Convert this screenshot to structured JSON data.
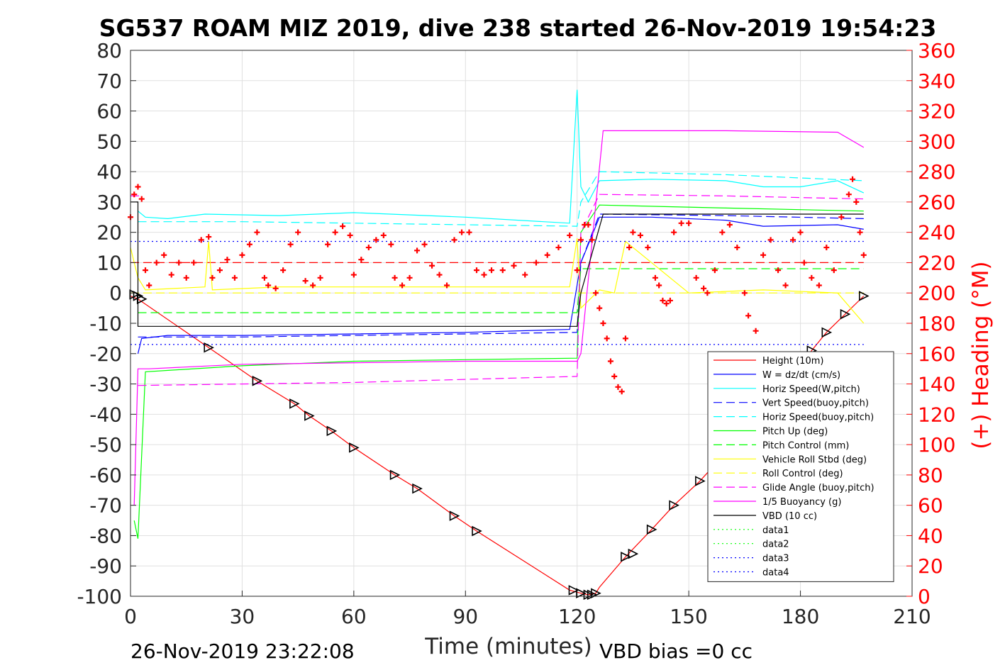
{
  "title": "SG537 ROAM MIZ 2019, dive 238 started 26-Nov-2019 19:54:23",
  "footer_left": "26-Nov-2019 23:22:08",
  "footer_right": "VBD bias =0 cc",
  "chart_data": {
    "type": "line",
    "title": "SG537 ROAM MIZ 2019, dive 238 started 26-Nov-2019 19:54:23",
    "xlabel": "Time (minutes)",
    "ylabel_left": "",
    "ylabel_right": "(+) Heading (°M)",
    "xlim": [
      0,
      210
    ],
    "ylim_left": [
      -100,
      80
    ],
    "ylim_right": [
      0,
      360
    ],
    "x_ticks": [
      "0",
      "30",
      "60",
      "90",
      "120",
      "150",
      "180",
      "210"
    ],
    "y_ticks_left": [
      "80",
      "70",
      "60",
      "50",
      "40",
      "30",
      "20",
      "10",
      "0",
      "-10",
      "-20",
      "-30",
      "-40",
      "-50",
      "-60",
      "-70",
      "-80",
      "-90",
      "-100"
    ],
    "y_ticks_right": [
      "360",
      "340",
      "320",
      "300",
      "280",
      "260",
      "240",
      "220",
      "200",
      "180",
      "160",
      "140",
      "120",
      "100",
      "80",
      "60",
      "40",
      "20",
      "0"
    ],
    "grid": true,
    "legend_position": "bottom-right",
    "series": [
      {
        "name": "Height (10m)",
        "color": "#ff0000",
        "style": "solid",
        "x": [
          0,
          2,
          21,
          34,
          44,
          48,
          54,
          60,
          71,
          77,
          87,
          93,
          118,
          121,
          123,
          125,
          126,
          133,
          140,
          146,
          153,
          170,
          183,
          187,
          192,
          197
        ],
        "y": [
          -1,
          -2,
          -18,
          -29,
          -36.5,
          -40.5,
          -45.5,
          -51,
          -60,
          -64.5,
          -73.5,
          -78.5,
          -98,
          -99,
          -99.5,
          -99,
          -97,
          -87,
          -78,
          -70,
          -62,
          -39,
          -19,
          -13,
          -7,
          -1
        ]
      },
      {
        "name": "W = dz/dt (cm/s)",
        "color": "#0000ff",
        "style": "solid",
        "x": [
          2,
          3,
          10,
          30,
          60,
          90,
          118,
          121,
          126,
          140,
          160,
          170,
          190,
          197
        ],
        "y": [
          -20,
          -15,
          -14,
          -14,
          -13.5,
          -13,
          -12,
          10,
          25,
          25,
          24,
          22,
          22.5,
          21
        ]
      },
      {
        "name": "Horiz Speed(W,pitch)",
        "color": "#00ffff",
        "style": "solid",
        "x": [
          2,
          4,
          10,
          20,
          40,
          60,
          90,
          118,
          120,
          121,
          123,
          126,
          140,
          160,
          170,
          180,
          190,
          197
        ],
        "y": [
          27,
          25,
          24.5,
          26,
          25.5,
          26.5,
          25,
          23,
          67,
          35,
          30,
          37,
          37.5,
          37,
          35,
          35,
          37,
          33
        ]
      },
      {
        "name": "Vert Speed(buoy,pitch)",
        "color": "#0000ff",
        "style": "dashed",
        "x": [
          2,
          30,
          60,
          90,
          120,
          121,
          126,
          160,
          197
        ],
        "y": [
          -14.5,
          -14.5,
          -14,
          -13.5,
          -13,
          10,
          26,
          25.5,
          24.5
        ]
      },
      {
        "name": "Horiz Speed(buoy,pitch)",
        "color": "#00ffff",
        "style": "dashed",
        "x": [
          2,
          30,
          60,
          90,
          120,
          121,
          126,
          160,
          197
        ],
        "y": [
          23.5,
          23.5,
          23,
          22.5,
          22,
          30,
          40,
          39,
          37
        ]
      },
      {
        "name": "Pitch Up (deg)",
        "color": "#00ff00",
        "style": "solid",
        "x": [
          1,
          2,
          4,
          30,
          60,
          90,
          120,
          121,
          126,
          160,
          197
        ],
        "y": [
          -75,
          -81,
          -26,
          -24,
          -22.5,
          -22,
          -21.5,
          20,
          29,
          28,
          27
        ]
      },
      {
        "name": "Pitch Control (mm)",
        "color": "#00ff00",
        "style": "dashed",
        "x": [
          2,
          120,
          121,
          197
        ],
        "y": [
          -6.5,
          -6.5,
          8,
          8
        ]
      },
      {
        "name": "Vehicle Roll Stbd (deg)",
        "color": "#ffff00",
        "style": "solid",
        "x": [
          0,
          2,
          4,
          20,
          21,
          22,
          40,
          60,
          90,
          118,
          120,
          121,
          126,
          130,
          133,
          150,
          170,
          190,
          197
        ],
        "y": [
          15,
          5,
          1,
          2,
          17,
          1,
          2,
          2,
          2,
          2,
          18,
          -5,
          1,
          0,
          17,
          0,
          1,
          0,
          -10
        ]
      },
      {
        "name": "Roll Control (deg)",
        "color": "#ffff00",
        "style": "dashed",
        "x": [
          0,
          197
        ],
        "y": [
          0,
          0
        ]
      },
      {
        "name": "Glide Angle (buoy,pitch)",
        "color": "#ff00ff",
        "style": "dashed",
        "x": [
          2,
          30,
          60,
          90,
          120,
          121,
          126,
          160,
          197
        ],
        "y": [
          -30.5,
          -30,
          -29.5,
          -28.5,
          -27.5,
          20,
          32.5,
          32,
          31
        ]
      },
      {
        "name": "1/5 Buoyancy (g)",
        "color": "#ff00ff",
        "style": "solid",
        "x": [
          1,
          2,
          5,
          30,
          60,
          90,
          120,
          121,
          127,
          160,
          190,
          197
        ],
        "y": [
          -70,
          -25,
          -25,
          -23.5,
          -23,
          -22.5,
          -22.5,
          -20,
          53.5,
          53.5,
          53,
          48
        ]
      },
      {
        "name": "VBD (10 cc)",
        "color": "#000000",
        "style": "solid",
        "x": [
          0,
          2,
          2,
          120,
          121,
          127,
          197
        ],
        "y": [
          30,
          30,
          -11,
          -11,
          0,
          26,
          26
        ]
      },
      {
        "name": "data1",
        "color": "#00ff00",
        "style": "dotted",
        "x": [],
        "y": []
      },
      {
        "name": "data2",
        "color": "#00ff00",
        "style": "dotted",
        "x": [],
        "y": []
      },
      {
        "name": "data3",
        "color": "#0000ff",
        "style": "dotted",
        "x": [
          0,
          197
        ],
        "y": [
          -17,
          -17
        ]
      },
      {
        "name": "data4",
        "color": "#0000ff",
        "style": "dotted",
        "x": [
          0,
          197
        ],
        "y": [
          17,
          17
        ]
      }
    ],
    "aux_lines": [
      {
        "color": "#ff0000",
        "style": "dashed",
        "x": [
          0,
          197
        ],
        "y": [
          10,
          10
        ]
      },
      {
        "color": "#ff00ff",
        "style": "dashed",
        "x": [
          0,
          3
        ],
        "y": [
          32,
          32
        ]
      }
    ],
    "heading_series": {
      "axis": "right",
      "color": "#ff0000",
      "marker": "+",
      "x": [
        0,
        1,
        2,
        3,
        4,
        5,
        7,
        9,
        11,
        13,
        15,
        17,
        19,
        21,
        22,
        24,
        26,
        28,
        30,
        32,
        34,
        36,
        37,
        39,
        41,
        43,
        45,
        47,
        49,
        51,
        53,
        55,
        57,
        59,
        60,
        62,
        64,
        66,
        68,
        70,
        71,
        73,
        75,
        77,
        79,
        81,
        83,
        85,
        87,
        89,
        91,
        93,
        95,
        97,
        100,
        103,
        106,
        109,
        112,
        115,
        118,
        120,
        121,
        122,
        123,
        124,
        125,
        126,
        127,
        128,
        129,
        130,
        131,
        132,
        133,
        134,
        135,
        137,
        139,
        141,
        142,
        143,
        144,
        145,
        146,
        148,
        150,
        152,
        154,
        155,
        157,
        159,
        161,
        163,
        165,
        166,
        168,
        170,
        172,
        174,
        176,
        178,
        180,
        181,
        183,
        185,
        187,
        189,
        191,
        193,
        194,
        195,
        196,
        197
      ],
      "y": [
        250,
        265,
        270,
        262,
        215,
        205,
        220,
        225,
        212,
        220,
        210,
        220,
        235,
        237,
        210,
        215,
        222,
        210,
        225,
        232,
        240,
        210,
        205,
        203,
        215,
        232,
        240,
        208,
        205,
        210,
        232,
        240,
        244,
        238,
        212,
        222,
        230,
        235,
        238,
        232,
        210,
        205,
        210,
        228,
        232,
        218,
        212,
        205,
        235,
        240,
        240,
        215,
        212,
        215,
        215,
        218,
        212,
        220,
        225,
        230,
        238,
        215,
        235,
        245,
        245,
        235,
        200,
        190,
        180,
        170,
        155,
        145,
        138,
        135,
        170,
        230,
        240,
        238,
        230,
        210,
        205,
        195,
        193,
        195,
        240,
        246,
        246,
        210,
        203,
        200,
        215,
        240,
        245,
        230,
        200,
        185,
        175,
        225,
        235,
        215,
        205,
        235,
        240,
        220,
        210,
        205,
        230,
        215,
        250,
        265,
        275,
        260,
        240,
        225
      ]
    },
    "vbd_markers": {
      "series": "Height (10m)",
      "shape": "triangle",
      "x": [
        1,
        2,
        3,
        21,
        34,
        44,
        48,
        54,
        60,
        71,
        77,
        87,
        93,
        119,
        121,
        123,
        124,
        125,
        133,
        135,
        140,
        146,
        153,
        183,
        187,
        192,
        197
      ],
      "y": [
        -0.5,
        -1,
        -2,
        -18,
        -29,
        -36.5,
        -40.5,
        -45.5,
        -51,
        -60,
        -64.5,
        -73.5,
        -78.5,
        -98,
        -99,
        -99.5,
        -99.5,
        -99,
        -87,
        -86,
        -78,
        -70,
        -62,
        -19,
        -13,
        -7,
        -1
      ]
    }
  }
}
